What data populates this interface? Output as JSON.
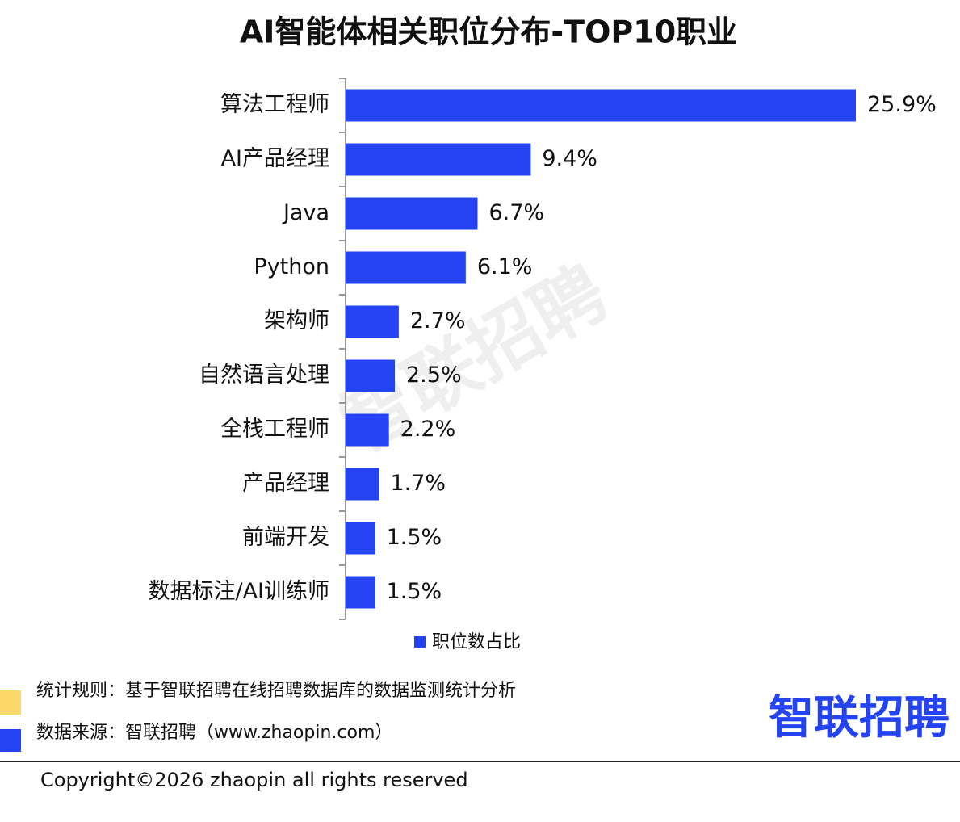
{
  "chart_data": {
    "type": "bar",
    "orientation": "horizontal",
    "title": "AI智能体相关职位分布-TOP10职业",
    "categories": [
      "算法工程师",
      "AI产品经理",
      "Java",
      "Python",
      "架构师",
      "自然语言处理",
      "全栈工程师",
      "产品经理",
      "前端开发",
      "数据标注/AI训练师"
    ],
    "series": [
      {
        "name": "职位数占比",
        "color": "#2443f2",
        "values": [
          25.9,
          9.4,
          6.7,
          6.1,
          2.7,
          2.5,
          2.2,
          1.7,
          1.5,
          1.5
        ],
        "value_labels": [
          "25.9%",
          "9.4%",
          "6.7%",
          "6.1%",
          "2.7%",
          "2.5%",
          "2.2%",
          "1.7%",
          "1.5%",
          "1.5%"
        ]
      }
    ],
    "legend": "bottom",
    "watermark": "智联招聘"
  },
  "footer": {
    "rule": "统计规则：基于智联招聘在线招聘数据库的数据监测统计分析",
    "source": "数据来源：智联招聘（www.zhaopin.com）",
    "logo": "智联招聘",
    "copyright": "Copyright©2026 zhaopin all rights reserved"
  }
}
